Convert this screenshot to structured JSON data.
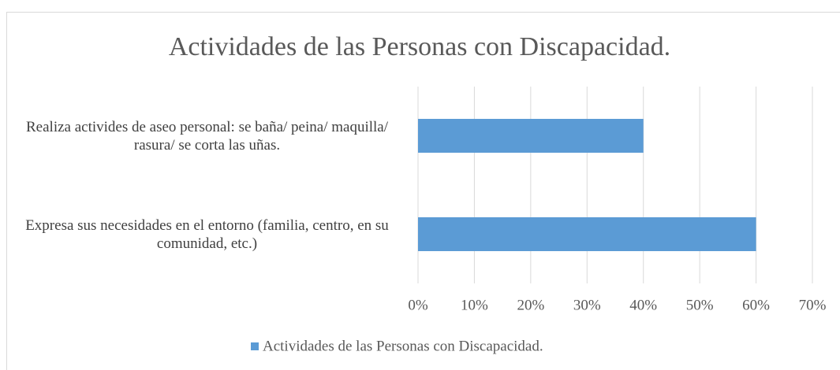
{
  "chart_data": {
    "type": "bar",
    "orientation": "horizontal",
    "title": "Actividades de las Personas con Discapacidad.",
    "categories": [
      "Realiza activides de aseo personal: se baña/ peina/ maquilla/ rasura/ se corta las uñas.",
      "Expresa sus necesidades en el entorno (familia, centro, en su comunidad, etc.)"
    ],
    "series": [
      {
        "name": "Actividades de las Personas con Discapacidad.",
        "color": "#5b9bd5",
        "values": [
          40,
          60
        ]
      }
    ],
    "xlim": [
      0,
      70
    ],
    "xticks": [
      {
        "value": 0,
        "label": "0%"
      },
      {
        "value": 10,
        "label": "10%"
      },
      {
        "value": 20,
        "label": "20%"
      },
      {
        "value": 30,
        "label": "30%"
      },
      {
        "value": 40,
        "label": "40%"
      },
      {
        "value": 50,
        "label": "50%"
      },
      {
        "value": 60,
        "label": "60%"
      },
      {
        "value": 70,
        "label": "70%"
      }
    ],
    "grid": true,
    "legend": "bottom"
  }
}
